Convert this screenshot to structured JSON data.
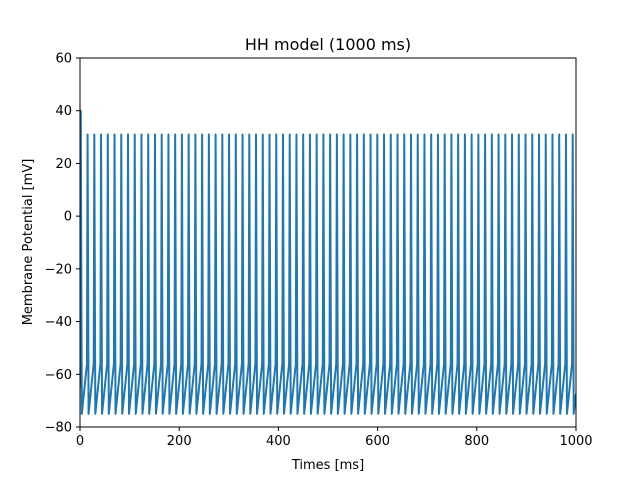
{
  "chart_data": {
    "type": "line",
    "title": "HH model (1000 ms)",
    "xlabel": "Times [ms]",
    "ylabel": "Membrane Potential [mV]",
    "xlim": [
      0,
      1000
    ],
    "ylim": [
      -80,
      60
    ],
    "xticks": [
      0,
      200,
      400,
      600,
      800,
      1000
    ],
    "yticks": [
      -80,
      -60,
      -40,
      -20,
      0,
      20,
      40,
      60
    ],
    "grid": false,
    "series_color": "#1f77b4",
    "spike_train": {
      "first_spike_time_ms": 1.5,
      "first_spike_peak_mv": 40,
      "spike_peak_mv": 31,
      "after_hyperpolarization_mv": -75,
      "pre_spike_threshold_mv": -56,
      "interspike_interval_ms": 12.6,
      "duration_ms": 1000
    }
  }
}
